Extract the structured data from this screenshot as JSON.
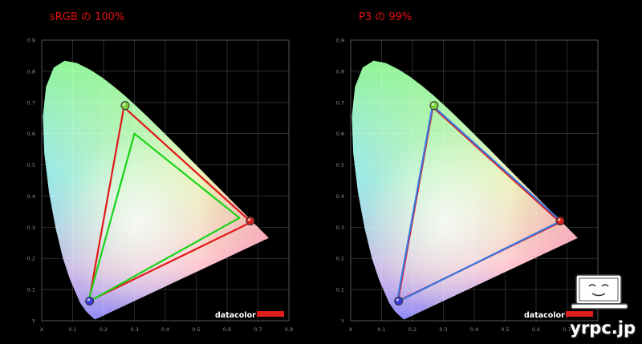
{
  "chart_data": [
    {
      "type": "scatter",
      "title": "sRGB の 100%",
      "xlabel": "x",
      "ylabel": "y",
      "xlim": [
        0,
        0.8
      ],
      "ylim": [
        0,
        0.9
      ],
      "x_ticks": [
        "X",
        "0.1",
        "0.2",
        "0.3",
        "0.4",
        "0.5",
        "0.6",
        "0.7",
        "0.8"
      ],
      "y_ticks": [
        "0.9",
        "0.8",
        "0.7",
        "0.6",
        "0.5",
        "0.4",
        "0.3",
        "0.2",
        "0.1",
        "Y"
      ],
      "grid": true,
      "series": [
        {
          "color": "#e01818",
          "points": [
            [
              0.678,
              0.316
            ],
            [
              0.266,
              0.685
            ],
            [
              0.153,
              0.063
            ]
          ]
        },
        {
          "color": "#18d418",
          "points": [
            [
              0.64,
              0.33
            ],
            [
              0.3,
              0.6
            ],
            [
              0.15,
              0.06
            ]
          ]
        }
      ],
      "markers": [
        [
          0.675,
          0.32
        ],
        [
          0.27,
          0.69
        ],
        [
          0.155,
          0.063
        ]
      ],
      "brand": "datacolor"
    },
    {
      "type": "scatter",
      "title": "P3 の 99%",
      "xlabel": "x",
      "ylabel": "y",
      "xlim": [
        0,
        0.8
      ],
      "ylim": [
        0,
        0.9
      ],
      "x_ticks": [
        "X",
        "0.1",
        "0.2",
        "0.3",
        "0.4",
        "0.5",
        "0.6",
        "0.7",
        "0.8"
      ],
      "y_ticks": [
        "0.9",
        "0.8",
        "0.7",
        "0.6",
        "0.5",
        "0.4",
        "0.3",
        "0.2",
        "0.1",
        "Y"
      ],
      "grid": true,
      "series": [
        {
          "color": "#e01818",
          "points": [
            [
              0.678,
              0.316
            ],
            [
              0.266,
              0.685
            ],
            [
              0.153,
              0.063
            ]
          ]
        },
        {
          "color": "#3a78e0",
          "points": [
            [
              0.68,
              0.32
            ],
            [
              0.265,
              0.69
            ],
            [
              0.15,
              0.06
            ]
          ]
        }
      ],
      "markers": [
        [
          0.678,
          0.32
        ],
        [
          0.27,
          0.69
        ],
        [
          0.155,
          0.063
        ]
      ],
      "brand": "datacolor"
    }
  ],
  "watermark": "yrpc.jp"
}
